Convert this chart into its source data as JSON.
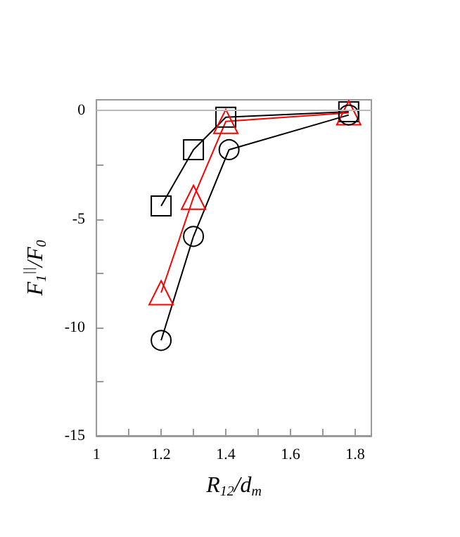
{
  "chart_data": {
    "type": "line",
    "xlabel": "R$_{12}$/d$_{m}$",
    "ylabel": "F$_{1}$$^{||}$/F$_{0}$",
    "xlim": [
      1,
      1.85
    ],
    "xticks": [
      1,
      {
        "value": 1.1,
        "label": null
      },
      1.2,
      {
        "value": 1.3,
        "label": null
      },
      1.4,
      {
        "value": 1.5,
        "label": null
      },
      1.6,
      {
        "value": 1.7,
        "label": null
      },
      1.8
    ],
    "ylim": [
      -15,
      0.5
    ],
    "yticks": [
      -15,
      {
        "value": -12.5,
        "label": null
      },
      -10,
      {
        "value": -7.5,
        "label": null
      },
      -5,
      {
        "value": -2.5,
        "label": null
      },
      0
    ],
    "grid": false,
    "line_style": "solid",
    "ref_lines": [
      {
        "axis": "y",
        "value": 0,
        "color": "#bbbbbb"
      }
    ],
    "series": [
      {
        "color": "#000000",
        "marker": "square",
        "x": [
          1.2,
          1.3,
          1.4,
          1.78
        ],
        "values": [
          -4.4,
          -1.8,
          -0.3,
          -0.05
        ]
      },
      {
        "color": "#ff0000",
        "marker": "triangle",
        "x": [
          1.2,
          1.3,
          1.4,
          1.78
        ],
        "values": [
          -8.4,
          -4.0,
          -0.5,
          -0.1
        ]
      },
      {
        "color": "#000000",
        "marker": "circle",
        "x": [
          1.2,
          1.3,
          1.41,
          1.78
        ],
        "values": [
          -10.6,
          -5.8,
          -1.8,
          -0.2
        ]
      }
    ]
  }
}
